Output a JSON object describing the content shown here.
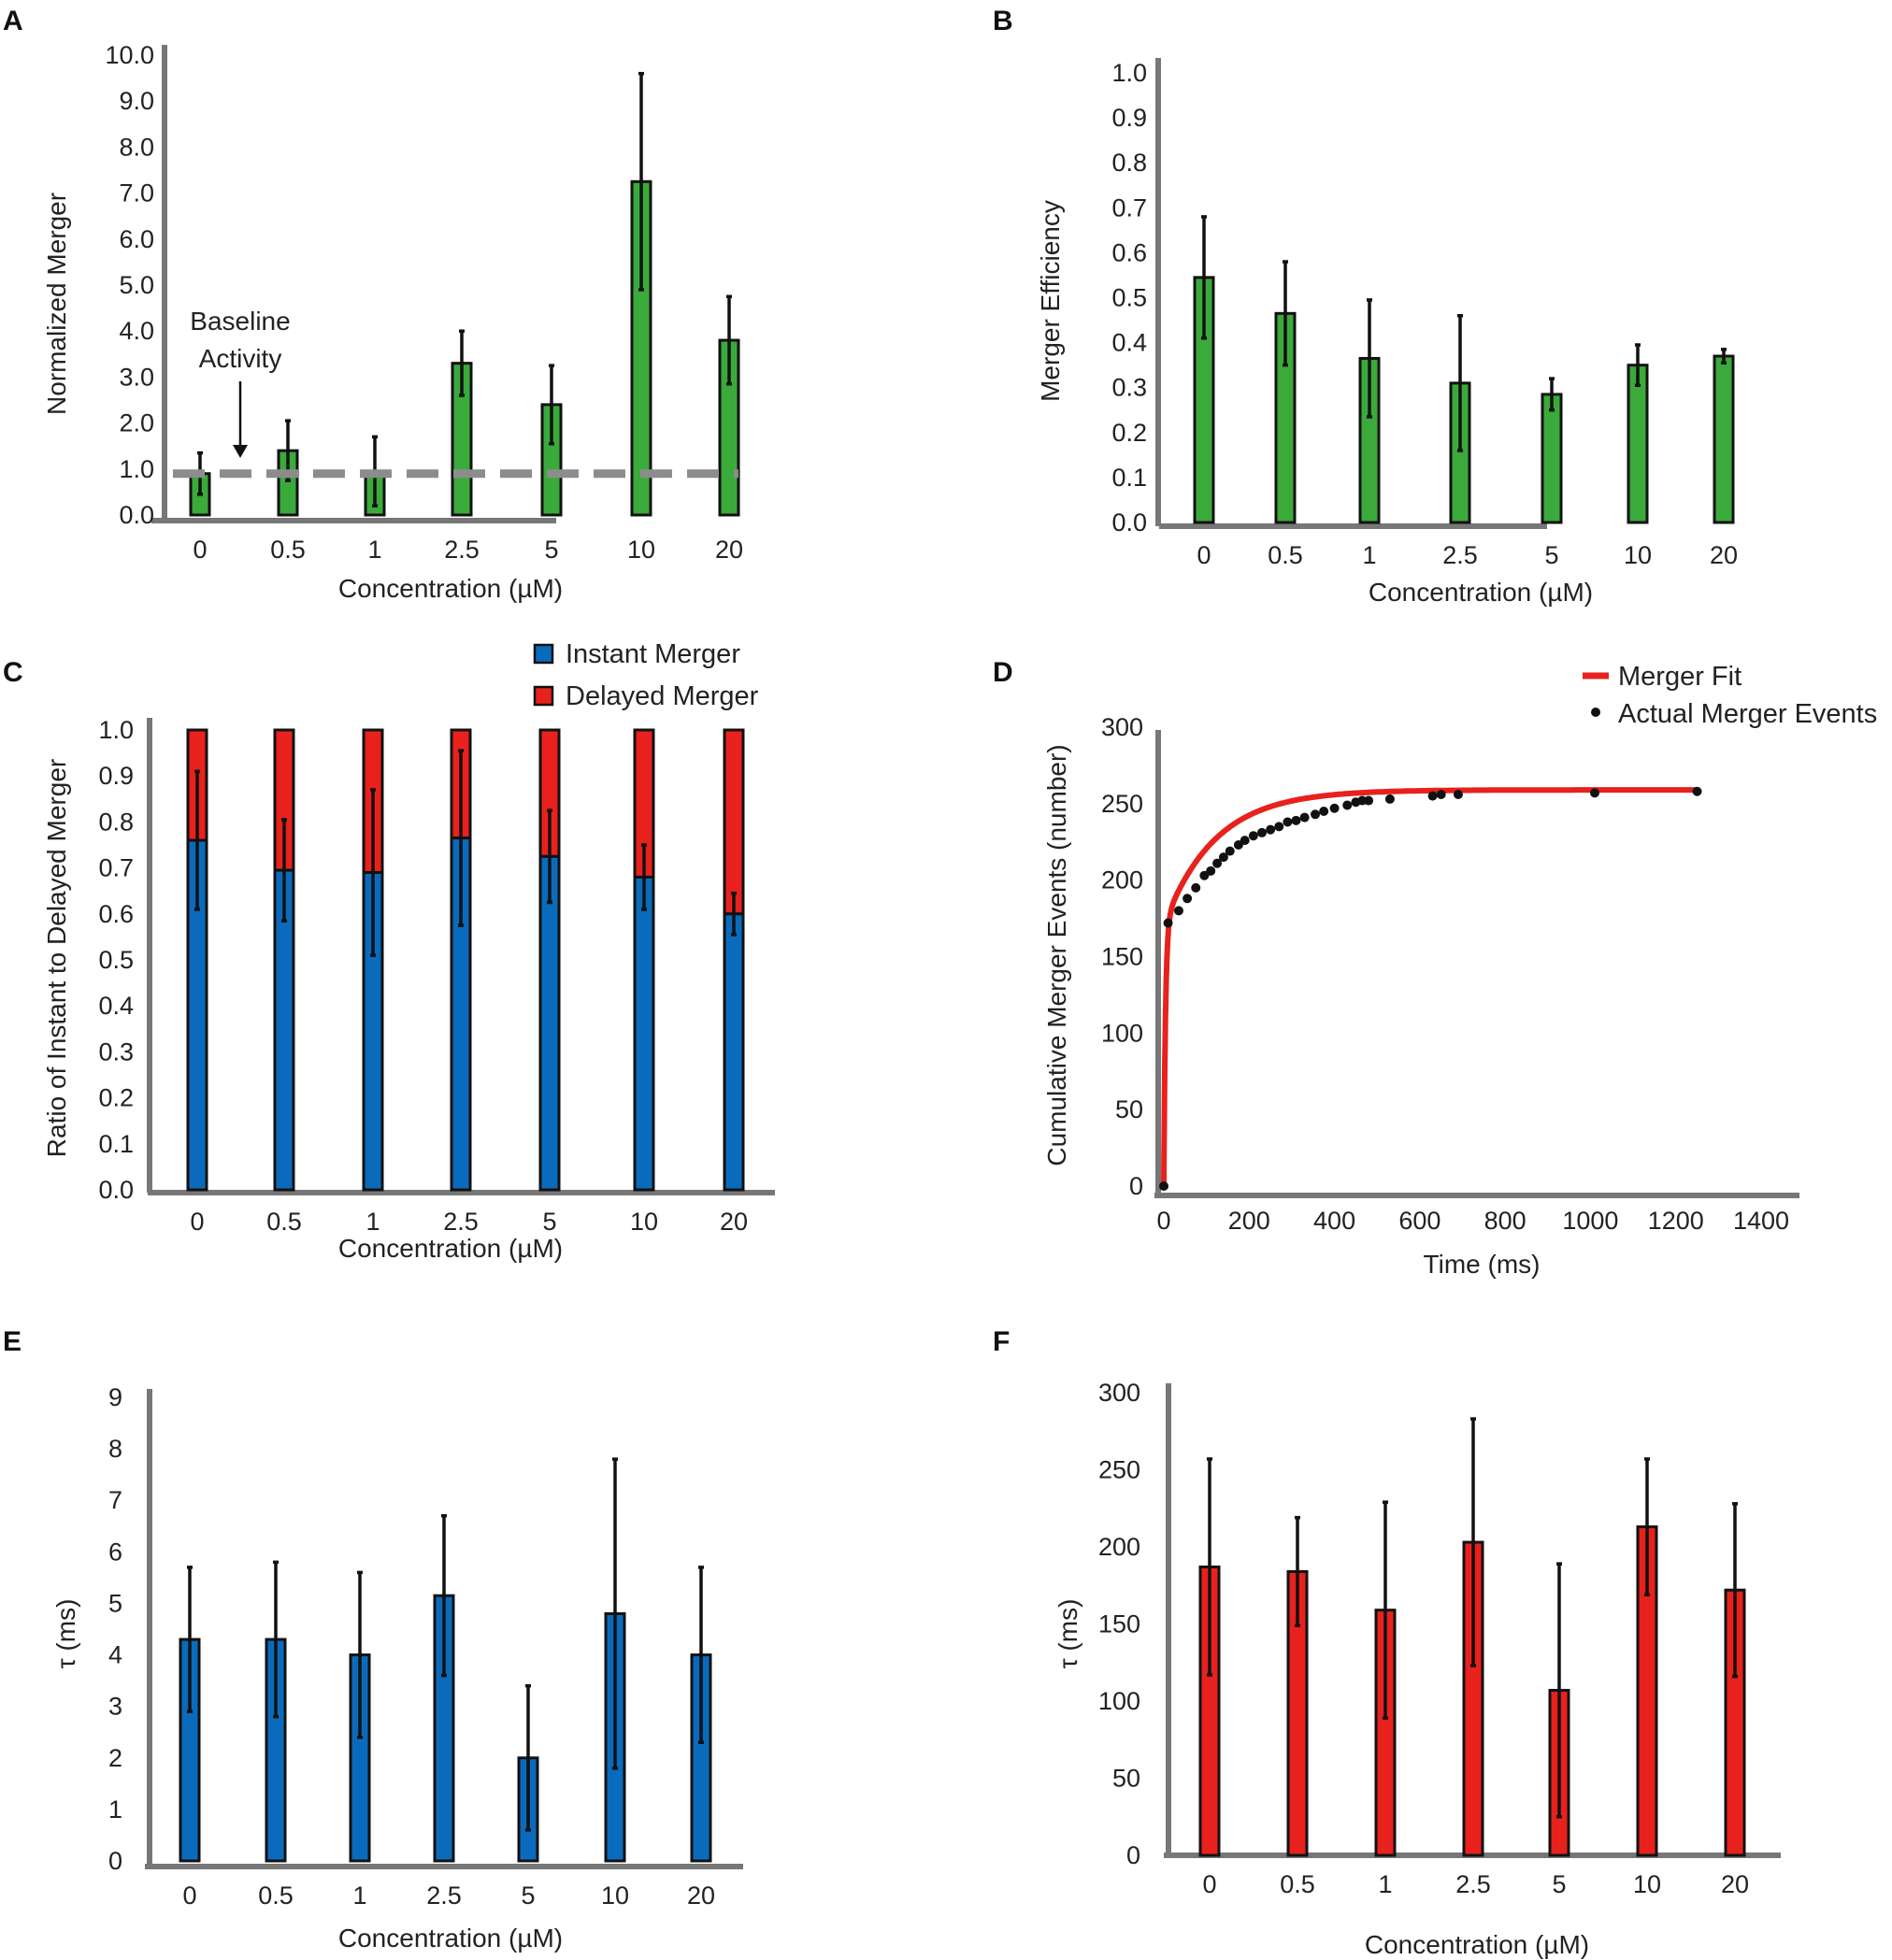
{
  "colors": {
    "green": "#3aaa3a",
    "blue": "#0a6bbd",
    "red": "#e8211d",
    "baseline": "#8c8c8c",
    "axis": "#777777",
    "errbar": "#111111"
  },
  "chart_data": [
    {
      "panel": "A",
      "type": "bar",
      "title": "",
      "xlabel": "Concentration (µM)",
      "ylabel": "Normalized Merger",
      "categories": [
        "0",
        "0.5",
        "1",
        "2.5",
        "5",
        "10",
        "20"
      ],
      "values": [
        0.9,
        1.4,
        0.95,
        3.3,
        2.4,
        7.25,
        3.8
      ],
      "errors": [
        0.45,
        0.65,
        0.75,
        0.7,
        0.85,
        2.35,
        0.95
      ],
      "yticks": [
        "0.0",
        "1.0",
        "2.0",
        "3.0",
        "4.0",
        "5.0",
        "6.0",
        "7.0",
        "8.0",
        "9.0",
        "10.0"
      ],
      "ylim": [
        0,
        10
      ],
      "baseline_value": 0.9,
      "annotation": [
        "Baseline",
        "Activity"
      ],
      "color": "green"
    },
    {
      "panel": "B",
      "type": "bar",
      "title": "",
      "xlabel": "Concentration (µM)",
      "ylabel": "Merger Efficiency",
      "categories": [
        "0",
        "0.5",
        "1",
        "2.5",
        "5",
        "10",
        "20"
      ],
      "values": [
        0.545,
        0.465,
        0.365,
        0.31,
        0.285,
        0.35,
        0.37
      ],
      "errors": [
        0.135,
        0.115,
        0.13,
        0.15,
        0.035,
        0.045,
        0.015
      ],
      "yticks": [
        "0.0",
        "0.1",
        "0.2",
        "0.3",
        "0.4",
        "0.5",
        "0.6",
        "0.7",
        "0.8",
        "0.9",
        "1.0"
      ],
      "ylim": [
        0,
        1
      ],
      "color": "green"
    },
    {
      "panel": "C",
      "type": "bar",
      "stacked": true,
      "title": "",
      "xlabel": "Concentration (µM)",
      "ylabel": "Ratio of Instant to Delayed Merger",
      "categories": [
        "0",
        "0.5",
        "1",
        "2.5",
        "5",
        "10",
        "20"
      ],
      "series": [
        {
          "name": "Instant Merger",
          "values": [
            0.76,
            0.695,
            0.69,
            0.765,
            0.725,
            0.68,
            0.6
          ],
          "errors": [
            0.15,
            0.11,
            0.18,
            0.19,
            0.1,
            0.07,
            0.045
          ],
          "color": "blue"
        },
        {
          "name": "Delayed Merger",
          "values": [
            0.24,
            0.305,
            0.31,
            0.235,
            0.275,
            0.32,
            0.4
          ],
          "color": "red"
        }
      ],
      "yticks": [
        "0.0",
        "0.1",
        "0.2",
        "0.3",
        "0.4",
        "0.5",
        "0.6",
        "0.7",
        "0.8",
        "0.9",
        "1.0"
      ],
      "ylim": [
        0,
        1
      ]
    },
    {
      "panel": "D",
      "type": "scatter",
      "title": "",
      "xlabel": "Time (ms)",
      "ylabel": "Cumulative Merger Events (number)",
      "xticks": [
        "0",
        "200",
        "400",
        "600",
        "800",
        "1000",
        "1200",
        "1400"
      ],
      "yticks": [
        "0",
        "50",
        "100",
        "150",
        "200",
        "250",
        "300"
      ],
      "xlim": [
        0,
        1400
      ],
      "ylim": [
        0,
        300
      ],
      "legend": [
        "Merger Fit",
        "Actual Merger Events"
      ],
      "fit": {
        "plateau": 259,
        "fast_amplitude": 171,
        "fast_tau": 4,
        "slow_tau": 120
      },
      "points": [
        [
          0,
          0
        ],
        [
          10,
          172
        ],
        [
          35,
          180
        ],
        [
          55,
          188
        ],
        [
          75,
          195
        ],
        [
          95,
          203
        ],
        [
          110,
          206
        ],
        [
          125,
          211
        ],
        [
          140,
          215
        ],
        [
          155,
          219
        ],
        [
          175,
          223
        ],
        [
          190,
          226
        ],
        [
          210,
          229
        ],
        [
          230,
          231
        ],
        [
          250,
          233
        ],
        [
          270,
          235
        ],
        [
          290,
          238
        ],
        [
          310,
          239
        ],
        [
          330,
          241
        ],
        [
          355,
          243
        ],
        [
          375,
          245
        ],
        [
          400,
          247
        ],
        [
          430,
          249
        ],
        [
          450,
          251
        ],
        [
          465,
          252
        ],
        [
          480,
          252
        ],
        [
          530,
          253
        ],
        [
          630,
          255
        ],
        [
          650,
          256
        ],
        [
          690,
          256
        ],
        [
          1010,
          257
        ],
        [
          1250,
          258
        ]
      ]
    },
    {
      "panel": "E",
      "type": "bar",
      "title": "",
      "xlabel": "Concentration (µM)",
      "ylabel": "τ (ms)",
      "categories": [
        "0",
        "0.5",
        "1",
        "2.5",
        "5",
        "10",
        "20"
      ],
      "values": [
        4.3,
        4.3,
        4.0,
        5.15,
        2.0,
        4.8,
        4.0
      ],
      "errors": [
        1.4,
        1.5,
        1.6,
        1.55,
        1.4,
        3.0,
        1.7
      ],
      "yticks": [
        "0",
        "1",
        "2",
        "3",
        "4",
        "5",
        "6",
        "7",
        "8",
        "9"
      ],
      "ylim": [
        0,
        9
      ],
      "color": "blue"
    },
    {
      "panel": "F",
      "type": "bar",
      "title": "",
      "xlabel": "Concentration (µM)",
      "ylabel": "τ (ms)",
      "categories": [
        "0",
        "0.5",
        "1",
        "2.5",
        "5",
        "10",
        "20"
      ],
      "values": [
        187,
        184,
        159,
        203,
        107,
        213,
        172
      ],
      "errors": [
        70,
        35,
        70,
        80,
        82,
        44,
        56
      ],
      "yticks": [
        "0",
        "50",
        "100",
        "150",
        "200",
        "250",
        "300"
      ],
      "ylim": [
        0,
        300
      ],
      "color": "red"
    }
  ]
}
